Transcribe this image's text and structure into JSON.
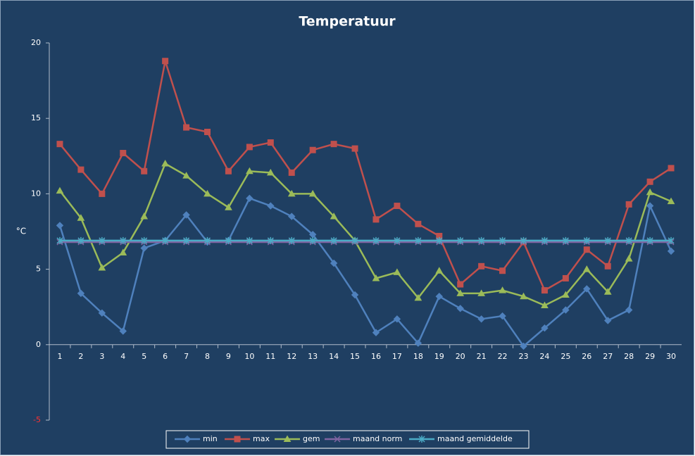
{
  "chart_data": {
    "type": "line",
    "title": "Temperatuur",
    "y_label": "°C",
    "categories": [
      "1",
      "2",
      "3",
      "4",
      "5",
      "6",
      "7",
      "8",
      "9",
      "10",
      "11",
      "12",
      "13",
      "14",
      "15",
      "16",
      "17",
      "18",
      "19",
      "20",
      "21",
      "22",
      "23",
      "24",
      "25",
      "26",
      "27",
      "28",
      "29",
      "30"
    ],
    "ylim": [
      -5,
      20
    ],
    "yticks": [
      -5,
      0,
      5,
      10,
      15,
      20
    ],
    "grid": false,
    "legend": "bottom",
    "series": [
      {
        "name": "min",
        "color": "#4f81bd",
        "marker": "diamond",
        "values": [
          7.9,
          3.4,
          2.1,
          0.9,
          6.4,
          6.9,
          8.6,
          6.8,
          6.9,
          9.7,
          9.2,
          8.5,
          7.3,
          5.4,
          3.3,
          0.8,
          1.7,
          0.1,
          3.2,
          2.4,
          1.7,
          1.9,
          -0.1,
          1.1,
          2.3,
          3.7,
          1.6,
          2.3,
          9.2,
          6.2
        ]
      },
      {
        "name": "max",
        "color": "#c0504d",
        "marker": "square",
        "values": [
          13.3,
          11.6,
          10.0,
          12.7,
          11.5,
          18.8,
          14.4,
          14.1,
          11.5,
          13.1,
          13.4,
          11.4,
          12.9,
          13.3,
          13.0,
          8.3,
          9.2,
          8.0,
          7.2,
          4.0,
          5.2,
          4.9,
          6.8,
          3.6,
          4.4,
          6.3,
          5.2,
          9.3,
          10.8,
          11.7
        ]
      },
      {
        "name": "gem",
        "color": "#9bbb59",
        "marker": "triangle",
        "values": [
          10.2,
          8.4,
          5.1,
          6.1,
          8.5,
          12.0,
          11.2,
          10.0,
          9.1,
          11.5,
          11.4,
          10.0,
          10.0,
          8.5,
          6.9,
          4.4,
          4.8,
          3.1,
          4.9,
          3.4,
          3.4,
          3.6,
          3.2,
          2.6,
          3.3,
          5.0,
          3.5,
          5.7,
          10.1,
          9.5
        ]
      },
      {
        "name": "maand norm",
        "color": "#8064a2",
        "marker": "x",
        "values": [
          6.8,
          6.8,
          6.8,
          6.8,
          6.8,
          6.8,
          6.8,
          6.8,
          6.8,
          6.8,
          6.8,
          6.8,
          6.8,
          6.8,
          6.8,
          6.8,
          6.8,
          6.8,
          6.8,
          6.8,
          6.8,
          6.8,
          6.8,
          6.8,
          6.8,
          6.8,
          6.8,
          6.8,
          6.8,
          6.8
        ]
      },
      {
        "name": "maand gemiddelde",
        "color": "#4bacc6",
        "marker": "star",
        "values": [
          6.9,
          6.9,
          6.9,
          6.9,
          6.9,
          6.9,
          6.9,
          6.9,
          6.9,
          6.9,
          6.9,
          6.9,
          6.9,
          6.9,
          6.9,
          6.9,
          6.9,
          6.9,
          6.9,
          6.9,
          6.9,
          6.9,
          6.9,
          6.9,
          6.9,
          6.9,
          6.9,
          6.9,
          6.9,
          6.9
        ]
      }
    ]
  }
}
